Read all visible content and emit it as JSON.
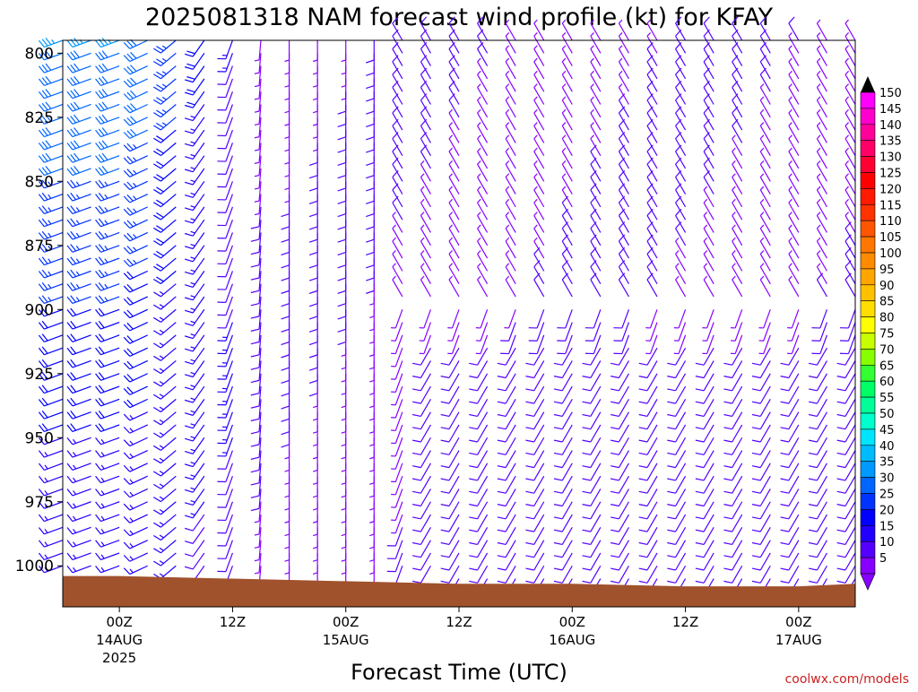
{
  "chart_data": {
    "type": "wind-barb profile",
    "title": "2025081318 NAM forecast wind profile (kt) for KFAY",
    "xlabel": "Forecast Time (UTC)",
    "ylabel": "",
    "credit": "coolwx.com/models",
    "y_axis": {
      "ticks": [
        "800",
        "825",
        "850",
        "875",
        "900",
        "925",
        "950",
        "975",
        "1000"
      ],
      "range": [
        795,
        1016
      ],
      "direction": "inverted"
    },
    "x_axis": {
      "ticks": [
        {
          "label": "00Z",
          "date": "14AUG",
          "year": "2025"
        },
        {
          "label": "12Z",
          "date": "",
          "year": ""
        },
        {
          "label": "00Z",
          "date": "15AUG",
          "year": ""
        },
        {
          "label": "12Z",
          "date": "",
          "year": ""
        },
        {
          "label": "00Z",
          "date": "16AUG",
          "year": ""
        },
        {
          "label": "12Z",
          "date": "",
          "year": ""
        },
        {
          "label": "00Z",
          "date": "17AUG",
          "year": ""
        }
      ],
      "range_hours": [
        6,
        90
      ]
    },
    "colorbar": {
      "levels": [
        "150",
        "145",
        "140",
        "135",
        "130",
        "125",
        "120",
        "115",
        "110",
        "105",
        "100",
        "95",
        "90",
        "85",
        "80",
        "75",
        "70",
        "65",
        "60",
        "55",
        "50",
        "45",
        "40",
        "35",
        "30",
        "25",
        "20",
        "15",
        "10",
        "5"
      ],
      "colors": [
        "#ff00ff",
        "#ff00cc",
        "#ff0099",
        "#ff0066",
        "#ff0033",
        "#ff0000",
        "#ff1a00",
        "#ff3300",
        "#ff5500",
        "#ff7700",
        "#ff8c00",
        "#ffa500",
        "#ffc000",
        "#ffdd00",
        "#ffff00",
        "#c8ff00",
        "#88ff00",
        "#33ff33",
        "#00ff66",
        "#00ff99",
        "#00ffcc",
        "#00e5ff",
        "#00bbff",
        "#0099ff",
        "#0066ff",
        "#0033ff",
        "#0000ff",
        "#2200ff",
        "#5500ff",
        "#8800ff"
      ],
      "top_arrow_color": "#000000",
      "bottom_arrow_color": "#8800ff"
    },
    "terrain": {
      "color": "#a0522d",
      "description_hours": [
        6,
        12,
        24,
        36,
        48,
        60,
        72,
        84,
        90
      ],
      "surface_pressure_hpa": [
        1004,
        1004,
        1005,
        1006,
        1007,
        1007,
        1008,
        1008,
        1007
      ]
    },
    "wind_field": {
      "time_step_hours": 3,
      "levels_hpa": [
        795,
        800,
        805,
        810,
        815,
        820,
        825,
        830,
        835,
        840,
        845,
        850,
        855,
        860,
        865,
        870,
        875,
        880,
        885,
        890,
        895,
        900,
        905,
        910,
        915,
        920,
        925,
        930,
        935,
        940,
        945,
        950,
        955,
        960,
        965,
        970,
        975,
        980,
        985,
        990,
        995,
        1000,
        1005
      ],
      "notes": "Barbs approximated: strong westerly (blue, 25-35 kt) aloft early, weakening to light northerly/variable (purple, 5-15 kt) later."
    }
  }
}
